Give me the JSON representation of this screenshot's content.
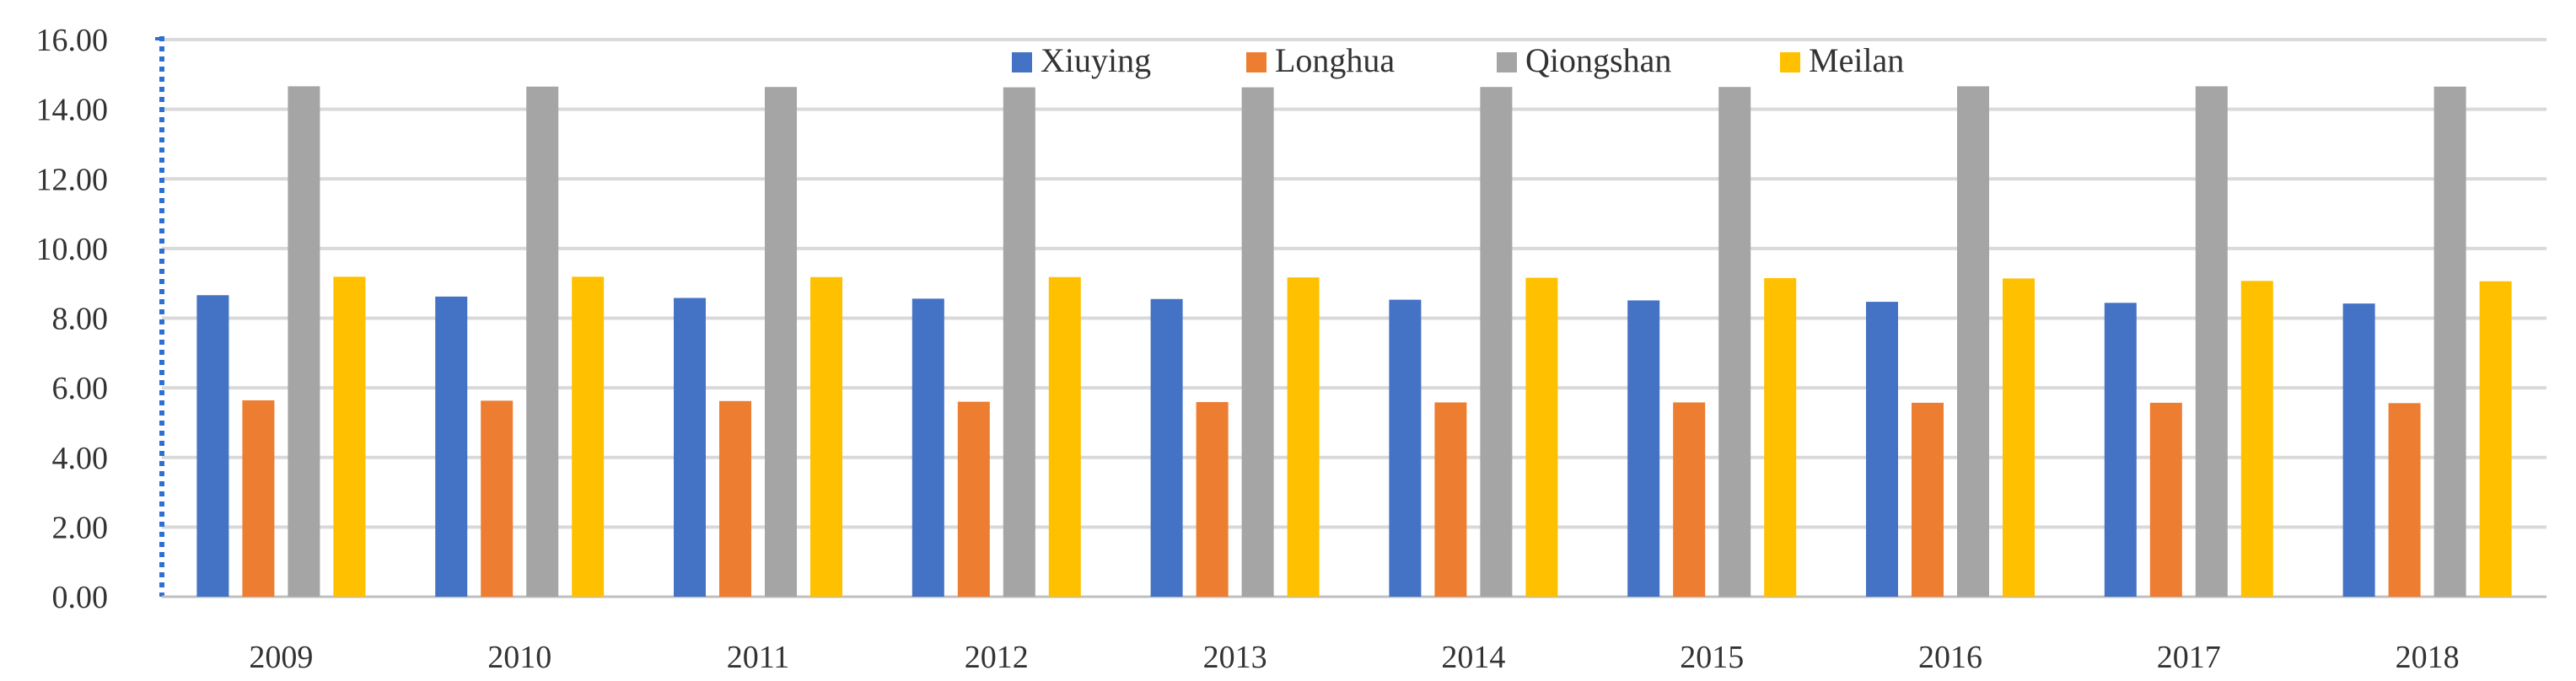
{
  "chart_data": {
    "type": "bar",
    "title": "",
    "xlabel": "",
    "ylabel": "",
    "categories": [
      "2009",
      "2010",
      "2011",
      "2012",
      "2013",
      "2014",
      "2015",
      "2016",
      "2017",
      "2018"
    ],
    "ylim": [
      0,
      16
    ],
    "yticks": [
      "0.00",
      "2.00",
      "4.00",
      "6.00",
      "8.00",
      "10.00",
      "12.00",
      "14.00",
      "16.00"
    ],
    "grid": true,
    "legend_position": "top",
    "series": [
      {
        "name": "Xiuying",
        "color": "#4472C4",
        "values": [
          8.66,
          8.62,
          8.58,
          8.56,
          8.55,
          8.53,
          8.51,
          8.47,
          8.44,
          8.42
        ]
      },
      {
        "name": "Longhua",
        "color": "#ED7D31",
        "values": [
          5.64,
          5.63,
          5.62,
          5.6,
          5.59,
          5.58,
          5.58,
          5.57,
          5.57,
          5.56
        ]
      },
      {
        "name": "Qiongshan",
        "color": "#A5A5A5",
        "values": [
          14.66,
          14.65,
          14.64,
          14.63,
          14.63,
          14.64,
          14.64,
          14.66,
          14.66,
          14.65
        ]
      },
      {
        "name": "Meilan",
        "color": "#FFC000",
        "values": [
          9.19,
          9.19,
          9.18,
          9.18,
          9.17,
          9.16,
          9.15,
          9.14,
          9.07,
          9.06
        ]
      }
    ]
  }
}
